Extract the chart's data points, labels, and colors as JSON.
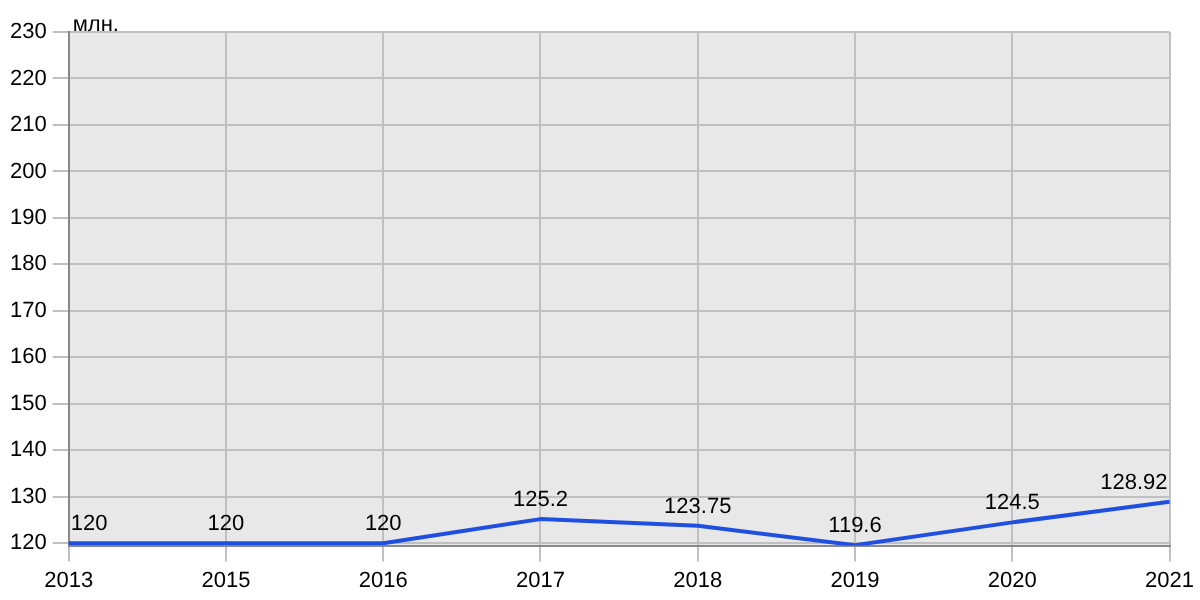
{
  "chart_data": {
    "type": "line",
    "ylabel": "млн.",
    "categories": [
      "2013",
      "2015",
      "2016",
      "2017",
      "2018",
      "2019",
      "2020",
      "2021"
    ],
    "series": [
      {
        "color": "#1f4fe0",
        "values": [
          120,
          120,
          120,
          125.2,
          123.75,
          119.6,
          124.5,
          128.92
        ]
      }
    ],
    "ylim": [
      119.5,
      230
    ],
    "yticks": [
      120,
      130,
      140,
      150,
      160,
      170,
      180,
      190,
      200,
      210,
      220,
      230
    ],
    "grid": true,
    "data_labels": true,
    "legend": false,
    "marker": "none"
  }
}
